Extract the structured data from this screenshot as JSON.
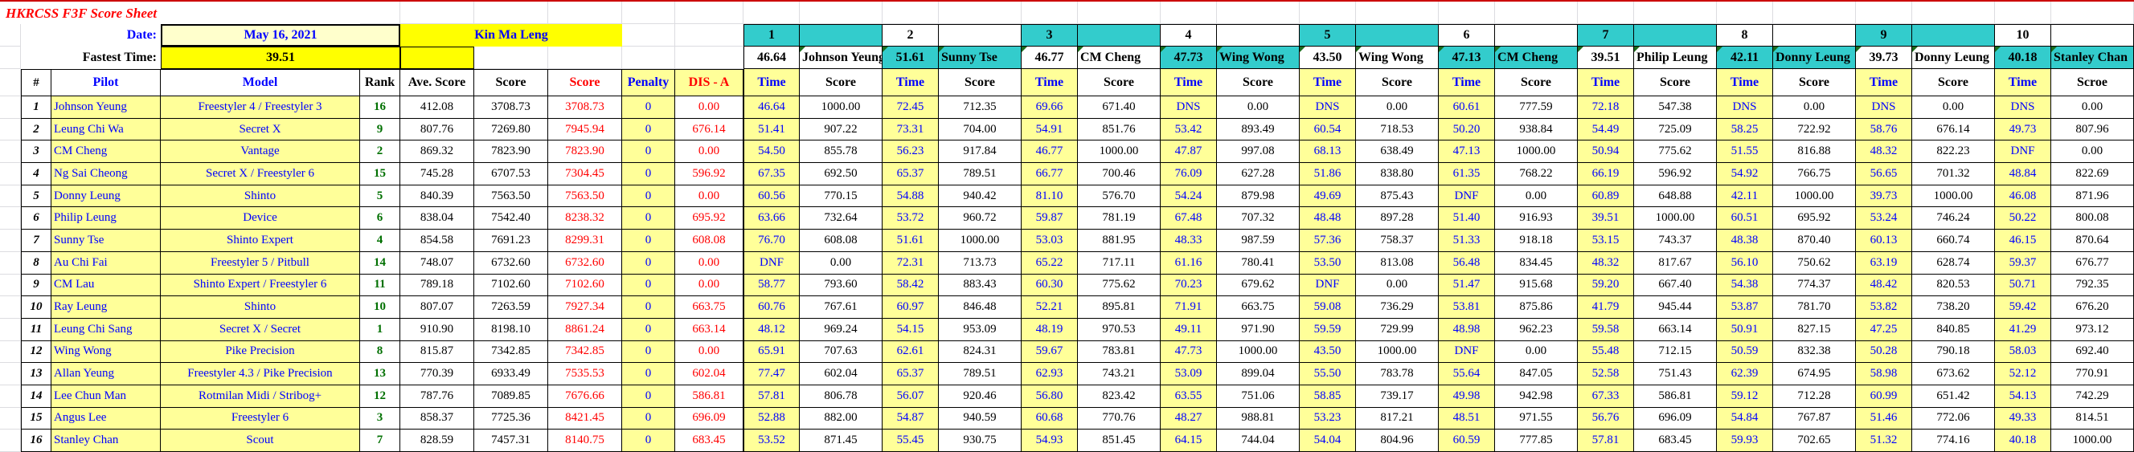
{
  "sheet": {
    "title": "HKRCSS F3F Score Sheet",
    "date_label": "Date:",
    "date_value": "May 16, 2021",
    "location": "Kin Ma Leng",
    "fastest_label": "Fastest Time:",
    "fastest_value": "39.51"
  },
  "colors": {
    "accent_teal": "#33CCCC",
    "bright_yellow": "#FFFF00",
    "light_yellow": "#FFFF99",
    "pale_yellow": "#FFFFCC",
    "blue_text": "#0000FF",
    "red_text": "#FF0000",
    "green_rank": "#007000",
    "top_rule_red": "#CC0000"
  },
  "table": {
    "headers": {
      "num": "#",
      "pilot": "Pilot",
      "model": "Model",
      "rank": "Rank",
      "ave": "Ave. Score",
      "score": "Score",
      "score_red": "Score",
      "penalty": "Penalty",
      "dis_a": "DIS - A",
      "time": "Time",
      "round_score": "Score",
      "round_score_last_typo": "Scroe"
    },
    "rounds": [
      {
        "no": "1",
        "fastest": "46.64",
        "pilot": "Johnson Yeung",
        "header_shaded": true,
        "time_marker": false
      },
      {
        "no": "2",
        "fastest": "51.61",
        "pilot": "Sunny Tse",
        "header_shaded": false,
        "time_marker": true
      },
      {
        "no": "3",
        "fastest": "46.77",
        "pilot": "CM Cheng",
        "header_shaded": true,
        "time_marker": true
      },
      {
        "no": "4",
        "fastest": "47.73",
        "pilot": "Wing Wong",
        "header_shaded": false,
        "time_marker": true
      },
      {
        "no": "5",
        "fastest": "43.50",
        "pilot": "Wing Wong",
        "header_shaded": true,
        "time_marker": true
      },
      {
        "no": "6",
        "fastest": "47.13",
        "pilot": "CM Cheng",
        "header_shaded": false,
        "time_marker": true
      },
      {
        "no": "7",
        "fastest": "39.51",
        "pilot": "Philip Leung",
        "header_shaded": true,
        "time_marker": true
      },
      {
        "no": "8",
        "fastest": "42.11",
        "pilot": "Donny Leung",
        "header_shaded": false,
        "time_marker": true
      },
      {
        "no": "9",
        "fastest": "39.73",
        "pilot": "Donny Leung",
        "header_shaded": true,
        "time_marker": true
      },
      {
        "no": "10",
        "fastest": "40.18",
        "pilot": "Stanley Chan",
        "header_shaded": false,
        "time_marker": true
      }
    ],
    "rows": [
      {
        "num": "1",
        "pilot": "Johnson Yeung",
        "model": "Freestyler 4 / Freestyler 3",
        "rank": "16",
        "ave": "412.08",
        "score": "3708.73",
        "score_b": "3708.73",
        "penalty": "0",
        "dis_a": "0.00",
        "rounds": [
          [
            "46.64",
            "1000.00"
          ],
          [
            "72.45",
            "712.35"
          ],
          [
            "69.66",
            "671.40"
          ],
          [
            "DNS",
            "0.00"
          ],
          [
            "DNS",
            "0.00"
          ],
          [
            "60.61",
            "777.59"
          ],
          [
            "72.18",
            "547.38"
          ],
          [
            "DNS",
            "0.00"
          ],
          [
            "DNS",
            "0.00"
          ],
          [
            "DNS",
            "0.00"
          ]
        ]
      },
      {
        "num": "2",
        "pilot": "Leung Chi Wa",
        "model": "Secret X",
        "rank": "9",
        "ave": "807.76",
        "score": "7269.80",
        "score_b": "7945.94",
        "penalty": "0",
        "dis_a": "676.14",
        "rounds": [
          [
            "51.41",
            "907.22"
          ],
          [
            "73.31",
            "704.00"
          ],
          [
            "54.91",
            "851.76"
          ],
          [
            "53.42",
            "893.49"
          ],
          [
            "60.54",
            "718.53"
          ],
          [
            "50.20",
            "938.84"
          ],
          [
            "54.49",
            "725.09"
          ],
          [
            "58.25",
            "722.92"
          ],
          [
            "58.76",
            "676.14"
          ],
          [
            "49.73",
            "807.96"
          ]
        ]
      },
      {
        "num": "3",
        "pilot": "CM Cheng",
        "model": "Vantage",
        "rank": "2",
        "ave": "869.32",
        "score": "7823.90",
        "score_b": "7823.90",
        "penalty": "0",
        "dis_a": "0.00",
        "rounds": [
          [
            "54.50",
            "855.78"
          ],
          [
            "56.23",
            "917.84"
          ],
          [
            "46.77",
            "1000.00"
          ],
          [
            "47.87",
            "997.08"
          ],
          [
            "68.13",
            "638.49"
          ],
          [
            "47.13",
            "1000.00"
          ],
          [
            "50.94",
            "775.62"
          ],
          [
            "51.55",
            "816.88"
          ],
          [
            "48.32",
            "822.23"
          ],
          [
            "DNF",
            "0.00"
          ]
        ]
      },
      {
        "num": "4",
        "pilot": "Ng Sai Cheong",
        "model": "Secret X / Freestyler 6",
        "rank": "15",
        "ave": "745.28",
        "score": "6707.53",
        "score_b": "7304.45",
        "penalty": "0",
        "dis_a": "596.92",
        "rounds": [
          [
            "67.35",
            "692.50"
          ],
          [
            "65.37",
            "789.51"
          ],
          [
            "66.77",
            "700.46"
          ],
          [
            "76.09",
            "627.28"
          ],
          [
            "51.86",
            "838.80"
          ],
          [
            "61.35",
            "768.22"
          ],
          [
            "66.19",
            "596.92"
          ],
          [
            "54.92",
            "766.75"
          ],
          [
            "56.65",
            "701.32"
          ],
          [
            "48.84",
            "822.69"
          ]
        ]
      },
      {
        "num": "5",
        "pilot": "Donny Leung",
        "model": "Shinto",
        "rank": "5",
        "ave": "840.39",
        "score": "7563.50",
        "score_b": "7563.50",
        "penalty": "0",
        "dis_a": "0.00",
        "rounds": [
          [
            "60.56",
            "770.15"
          ],
          [
            "54.88",
            "940.42"
          ],
          [
            "81.10",
            "576.70"
          ],
          [
            "54.24",
            "879.98"
          ],
          [
            "49.69",
            "875.43"
          ],
          [
            "DNF",
            "0.00"
          ],
          [
            "60.89",
            "648.88"
          ],
          [
            "42.11",
            "1000.00"
          ],
          [
            "39.73",
            "1000.00"
          ],
          [
            "46.08",
            "871.96"
          ]
        ]
      },
      {
        "num": "6",
        "pilot": "Philip Leung",
        "model": "Device",
        "rank": "6",
        "ave": "838.04",
        "score": "7542.40",
        "score_b": "8238.32",
        "penalty": "0",
        "dis_a": "695.92",
        "rounds": [
          [
            "63.66",
            "732.64"
          ],
          [
            "53.72",
            "960.72"
          ],
          [
            "59.87",
            "781.19"
          ],
          [
            "67.48",
            "707.32"
          ],
          [
            "48.48",
            "897.28"
          ],
          [
            "51.40",
            "916.93"
          ],
          [
            "39.51",
            "1000.00"
          ],
          [
            "60.51",
            "695.92"
          ],
          [
            "53.24",
            "746.24"
          ],
          [
            "50.22",
            "800.08"
          ]
        ]
      },
      {
        "num": "7",
        "pilot": "Sunny Tse",
        "model": "Shinto Expert",
        "rank": "4",
        "ave": "854.58",
        "score": "7691.23",
        "score_b": "8299.31",
        "penalty": "0",
        "dis_a": "608.08",
        "rounds": [
          [
            "76.70",
            "608.08"
          ],
          [
            "51.61",
            "1000.00"
          ],
          [
            "53.03",
            "881.95"
          ],
          [
            "48.33",
            "987.59"
          ],
          [
            "57.36",
            "758.37"
          ],
          [
            "51.33",
            "918.18"
          ],
          [
            "53.15",
            "743.37"
          ],
          [
            "48.38",
            "870.40"
          ],
          [
            "60.13",
            "660.74"
          ],
          [
            "46.15",
            "870.64"
          ]
        ]
      },
      {
        "num": "8",
        "pilot": "Au Chi Fai",
        "model": "Freestyler 5 / Pitbull",
        "rank": "14",
        "ave": "748.07",
        "score": "6732.60",
        "score_b": "6732.60",
        "penalty": "0",
        "dis_a": "0.00",
        "rounds": [
          [
            "DNF",
            "0.00"
          ],
          [
            "72.31",
            "713.73"
          ],
          [
            "65.22",
            "717.11"
          ],
          [
            "61.16",
            "780.41"
          ],
          [
            "53.50",
            "813.08"
          ],
          [
            "56.48",
            "834.45"
          ],
          [
            "48.32",
            "817.67"
          ],
          [
            "56.10",
            "750.62"
          ],
          [
            "63.19",
            "628.74"
          ],
          [
            "59.37",
            "676.77"
          ]
        ]
      },
      {
        "num": "9",
        "pilot": "CM Lau",
        "model": "Shinto Expert / Freestyler 6",
        "rank": "11",
        "ave": "789.18",
        "score": "7102.60",
        "score_b": "7102.60",
        "penalty": "0",
        "dis_a": "0.00",
        "rounds": [
          [
            "58.77",
            "793.60"
          ],
          [
            "58.42",
            "883.43"
          ],
          [
            "60.30",
            "775.62"
          ],
          [
            "70.23",
            "679.62"
          ],
          [
            "DNF",
            "0.00"
          ],
          [
            "51.47",
            "915.68"
          ],
          [
            "59.20",
            "667.40"
          ],
          [
            "54.38",
            "774.37"
          ],
          [
            "48.42",
            "820.53"
          ],
          [
            "50.71",
            "792.35"
          ]
        ]
      },
      {
        "num": "10",
        "pilot": "Ray Leung",
        "model": "Shinto",
        "rank": "10",
        "ave": "807.07",
        "score": "7263.59",
        "score_b": "7927.34",
        "penalty": "0",
        "dis_a": "663.75",
        "rounds": [
          [
            "60.76",
            "767.61"
          ],
          [
            "60.97",
            "846.48"
          ],
          [
            "52.21",
            "895.81"
          ],
          [
            "71.91",
            "663.75"
          ],
          [
            "59.08",
            "736.29"
          ],
          [
            "53.81",
            "875.86"
          ],
          [
            "41.79",
            "945.44"
          ],
          [
            "53.87",
            "781.70"
          ],
          [
            "53.82",
            "738.20"
          ],
          [
            "59.42",
            "676.20"
          ]
        ]
      },
      {
        "num": "11",
        "pilot": "Leung Chi Sang",
        "model": "Secret X / Secret",
        "rank": "1",
        "ave": "910.90",
        "score": "8198.10",
        "score_b": "8861.24",
        "penalty": "0",
        "dis_a": "663.14",
        "rounds": [
          [
            "48.12",
            "969.24"
          ],
          [
            "54.15",
            "953.09"
          ],
          [
            "48.19",
            "970.53"
          ],
          [
            "49.11",
            "971.90"
          ],
          [
            "59.59",
            "729.99"
          ],
          [
            "48.98",
            "962.23"
          ],
          [
            "59.58",
            "663.14"
          ],
          [
            "50.91",
            "827.15"
          ],
          [
            "47.25",
            "840.85"
          ],
          [
            "41.29",
            "973.12"
          ]
        ]
      },
      {
        "num": "12",
        "pilot": "Wing Wong",
        "model": "Pike Precision",
        "rank": "8",
        "ave": "815.87",
        "score": "7342.85",
        "score_b": "7342.85",
        "penalty": "0",
        "dis_a": "0.00",
        "rounds": [
          [
            "65.91",
            "707.63"
          ],
          [
            "62.61",
            "824.31"
          ],
          [
            "59.67",
            "783.81"
          ],
          [
            "47.73",
            "1000.00"
          ],
          [
            "43.50",
            "1000.00"
          ],
          [
            "DNF",
            "0.00"
          ],
          [
            "55.48",
            "712.15"
          ],
          [
            "50.59",
            "832.38"
          ],
          [
            "50.28",
            "790.18"
          ],
          [
            "58.03",
            "692.40"
          ]
        ]
      },
      {
        "num": "13",
        "pilot": "Allan Yeung",
        "model": "Freestyler 4.3 / Pike Precision",
        "rank": "13",
        "ave": "770.39",
        "score": "6933.49",
        "score_b": "7535.53",
        "penalty": "0",
        "dis_a": "602.04",
        "rounds": [
          [
            "77.47",
            "602.04"
          ],
          [
            "65.37",
            "789.51"
          ],
          [
            "62.93",
            "743.21"
          ],
          [
            "53.09",
            "899.04"
          ],
          [
            "55.50",
            "783.78"
          ],
          [
            "55.64",
            "847.05"
          ],
          [
            "52.58",
            "751.43"
          ],
          [
            "62.39",
            "674.95"
          ],
          [
            "58.98",
            "673.62"
          ],
          [
            "52.12",
            "770.91"
          ]
        ]
      },
      {
        "num": "14",
        "pilot": "Lee Chun Man",
        "model": "Rotmilan Midi / Stribog+",
        "rank": "12",
        "ave": "787.76",
        "score": "7089.85",
        "score_b": "7676.66",
        "penalty": "0",
        "dis_a": "586.81",
        "rounds": [
          [
            "57.81",
            "806.78"
          ],
          [
            "56.07",
            "920.46"
          ],
          [
            "56.80",
            "823.42"
          ],
          [
            "63.55",
            "751.06"
          ],
          [
            "58.85",
            "739.17"
          ],
          [
            "49.98",
            "942.98"
          ],
          [
            "67.33",
            "586.81"
          ],
          [
            "59.12",
            "712.28"
          ],
          [
            "60.99",
            "651.42"
          ],
          [
            "54.13",
            "742.29"
          ]
        ]
      },
      {
        "num": "15",
        "pilot": "Angus Lee",
        "model": "Freestyler 6",
        "rank": "3",
        "ave": "858.37",
        "score": "7725.36",
        "score_b": "8421.45",
        "penalty": "0",
        "dis_a": "696.09",
        "rounds": [
          [
            "52.88",
            "882.00"
          ],
          [
            "54.87",
            "940.59"
          ],
          [
            "60.68",
            "770.76"
          ],
          [
            "48.27",
            "988.81"
          ],
          [
            "53.23",
            "817.21"
          ],
          [
            "48.51",
            "971.55"
          ],
          [
            "56.76",
            "696.09"
          ],
          [
            "54.84",
            "767.87"
          ],
          [
            "51.46",
            "772.06"
          ],
          [
            "49.33",
            "814.51"
          ]
        ]
      },
      {
        "num": "16",
        "pilot": "Stanley Chan",
        "model": "Scout",
        "rank": "7",
        "ave": "828.59",
        "score": "7457.31",
        "score_b": "8140.75",
        "penalty": "0",
        "dis_a": "683.45",
        "rounds": [
          [
            "53.52",
            "871.45"
          ],
          [
            "55.45",
            "930.75"
          ],
          [
            "54.93",
            "851.45"
          ],
          [
            "64.15",
            "744.04"
          ],
          [
            "54.04",
            "804.96"
          ],
          [
            "60.59",
            "777.85"
          ],
          [
            "57.81",
            "683.45"
          ],
          [
            "59.93",
            "702.65"
          ],
          [
            "51.32",
            "774.16"
          ],
          [
            "40.18",
            "1000.00"
          ]
        ]
      }
    ]
  }
}
